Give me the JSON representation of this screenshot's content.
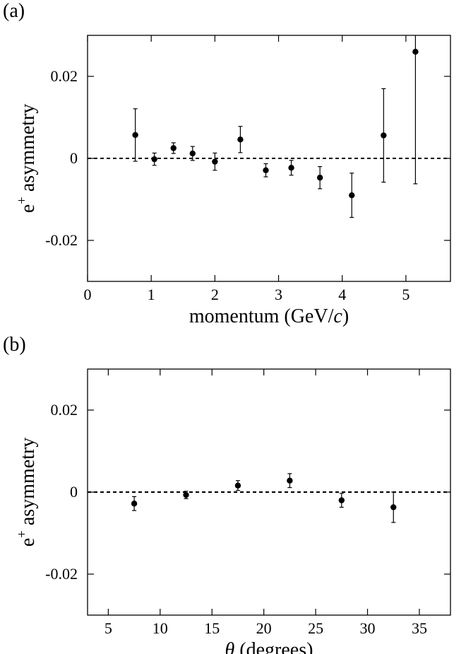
{
  "chart_data": [
    {
      "type": "scatter",
      "panel_label": "(a)",
      "xlabel": "momentum (GeV/",
      "xlabel_italic": "c",
      "xlabel_end": ")",
      "ylabel": "e",
      "ylabel_sup": "+",
      "ylabel_rest": " asymmetry",
      "xlim": [
        0,
        5.7
      ],
      "ylim": [
        -0.03,
        0.03
      ],
      "xticks": [
        0,
        1,
        2,
        3,
        4,
        5
      ],
      "xtick_labels": [
        "0",
        "1",
        "2",
        "3",
        "4",
        "5"
      ],
      "yticks": [
        -0.02,
        0,
        0.02
      ],
      "ytick_labels": [
        "-0.02",
        "0",
        "0.02"
      ],
      "reference_line": {
        "y": 0,
        "style": "dashed"
      },
      "points": [
        {
          "x": 0.75,
          "y": 0.0057,
          "err": 0.0064
        },
        {
          "x": 1.05,
          "y": -0.0002,
          "err": 0.0015
        },
        {
          "x": 1.35,
          "y": 0.0025,
          "err": 0.0013
        },
        {
          "x": 1.65,
          "y": 0.0012,
          "err": 0.0017
        },
        {
          "x": 2.0,
          "y": -0.0008,
          "err": 0.0021
        },
        {
          "x": 2.4,
          "y": 0.0046,
          "err": 0.0032
        },
        {
          "x": 2.8,
          "y": -0.0029,
          "err": 0.0016
        },
        {
          "x": 3.2,
          "y": -0.0023,
          "err": 0.0018
        },
        {
          "x": 3.65,
          "y": -0.0047,
          "err": 0.0027
        },
        {
          "x": 4.15,
          "y": -0.009,
          "err": 0.0054
        },
        {
          "x": 4.65,
          "y": 0.0056,
          "err": 0.0114
        },
        {
          "x": 5.15,
          "y": 0.026,
          "err": 0.0322
        }
      ]
    },
    {
      "type": "scatter",
      "panel_label": "(b)",
      "xlabel_symbol": "θ",
      "xlabel": " (degrees)",
      "ylabel": "e",
      "ylabel_sup": "+",
      "ylabel_rest": " asymmetry",
      "xlim": [
        3,
        38
      ],
      "ylim": [
        -0.03,
        0.03
      ],
      "xticks": [
        5,
        10,
        15,
        20,
        25,
        30,
        35
      ],
      "xtick_labels": [
        "5",
        "10",
        "15",
        "20",
        "25",
        "30",
        "35"
      ],
      "yticks": [
        -0.02,
        0,
        0.02
      ],
      "ytick_labels": [
        "-0.02",
        "0",
        "0.02"
      ],
      "reference_line": {
        "y": 0,
        "style": "dashed"
      },
      "points": [
        {
          "x": 7.5,
          "y": -0.0028,
          "err": 0.0017
        },
        {
          "x": 12.5,
          "y": -0.0007,
          "err": 0.0009
        },
        {
          "x": 17.5,
          "y": 0.0016,
          "err": 0.0012
        },
        {
          "x": 22.5,
          "y": 0.0028,
          "err": 0.0017
        },
        {
          "x": 27.5,
          "y": -0.002,
          "err": 0.0017
        },
        {
          "x": 32.5,
          "y": -0.0037,
          "err": 0.0037
        }
      ]
    }
  ]
}
